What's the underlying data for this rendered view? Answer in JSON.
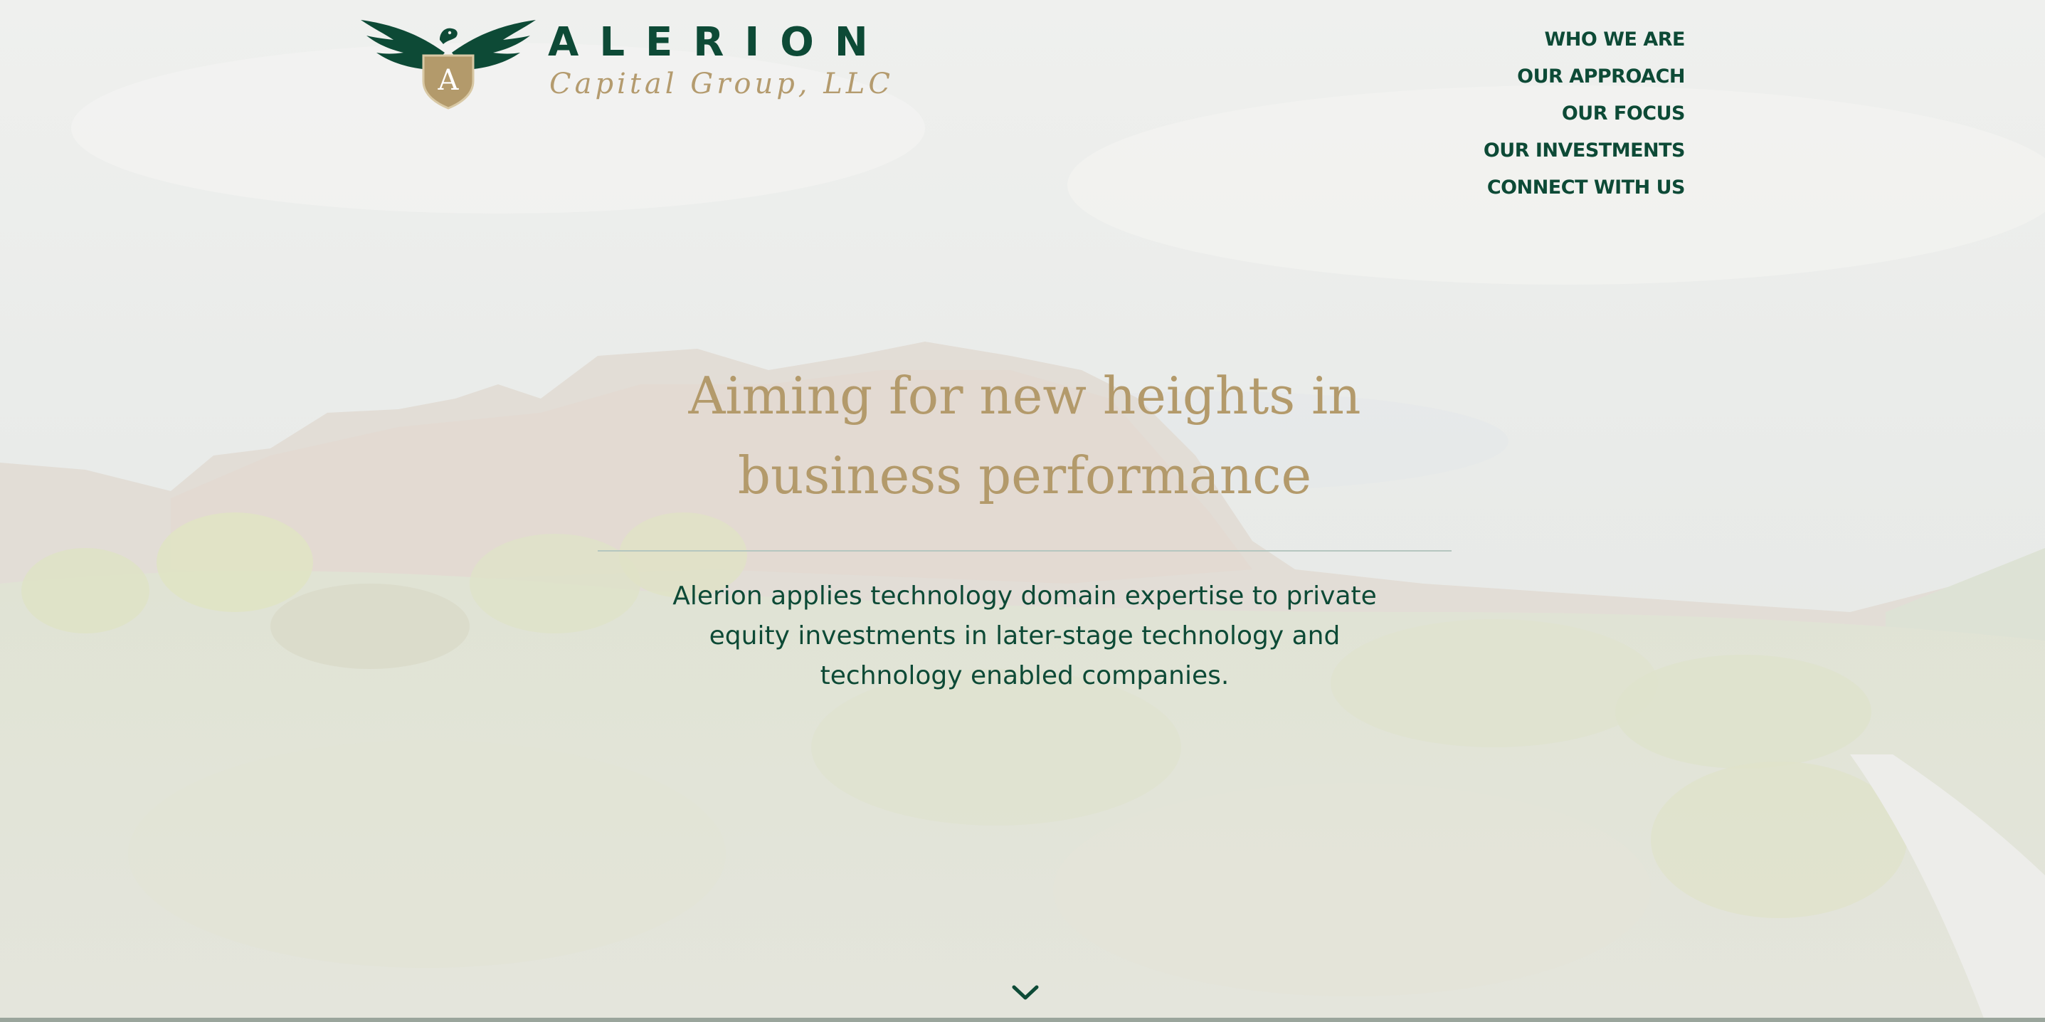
{
  "brand": {
    "name": "ALERION",
    "subtitle": "Capital Group, LLC",
    "shield_letter": "A",
    "icon": "eagle-shield-icon"
  },
  "nav": {
    "items": [
      {
        "label": "WHO WE ARE"
      },
      {
        "label": "OUR APPROACH"
      },
      {
        "label": "OUR FOCUS"
      },
      {
        "label": "OUR INVESTMENTS"
      },
      {
        "label": "CONNECT WITH US"
      }
    ]
  },
  "hero": {
    "headline_line1": "Aiming for new heights in",
    "headline_line2": "business performance",
    "tagline_line1": "Alerion applies technology domain expertise to private",
    "tagline_line2": "equity investments in later-stage technology and",
    "tagline_line3": "technology enabled companies.",
    "scroll_icon": "chevron-down-icon"
  },
  "colors": {
    "brand_green": "#0d4a36",
    "brand_gold": "#b39a6b"
  }
}
